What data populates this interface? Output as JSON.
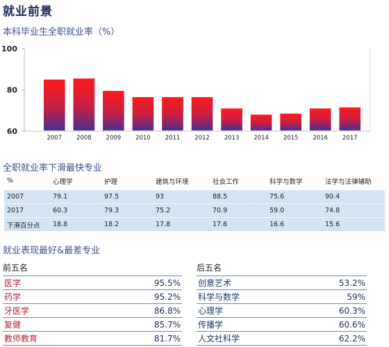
{
  "page_title": "就业前景",
  "chart_data": {
    "type": "bar",
    "title": "本科毕业生全职就业率（%）",
    "categories": [
      "2007",
      "2008",
      "2009",
      "2010",
      "2011",
      "2012",
      "2013",
      "2014",
      "2015",
      "2016",
      "2017"
    ],
    "values": [
      85,
      85.5,
      79.5,
      76.5,
      76.5,
      76.5,
      71,
      68,
      68.5,
      71,
      71.5
    ],
    "yticks": [
      60,
      80,
      100
    ],
    "ylim": [
      60,
      100
    ],
    "colors": {
      "top": "#ff1a1a",
      "bottom": "#4a2f8f",
      "frame": "#ccc"
    }
  },
  "drop_table": {
    "title": "全职就业率下滑最快专业",
    "header": [
      "%",
      "心理学",
      "护理",
      "建筑与环境",
      "社会工作",
      "科学与数学",
      "法学与法律辅助"
    ],
    "rows": [
      [
        "2007",
        "79.1",
        "97.5",
        "93",
        "88.5",
        "75.6",
        "90.4"
      ],
      [
        "2017",
        "60.3",
        "79.3",
        "75.2",
        "70.9",
        "59.0",
        "74.8"
      ],
      [
        "下滑百分点",
        "18.8",
        "18.2",
        "17.8",
        "17.6",
        "16.6",
        "15.6"
      ]
    ]
  },
  "ranking": {
    "title": "就业表现最好&最差专业",
    "best_label": "前五名",
    "worst_label": "后五名",
    "best": [
      {
        "name": "医学",
        "pct": "95.5%"
      },
      {
        "name": "药学",
        "pct": "95.2%"
      },
      {
        "name": "牙医学",
        "pct": "86.8%"
      },
      {
        "name": "复健",
        "pct": "85.7%"
      },
      {
        "name": "教师教育",
        "pct": "81.7%"
      }
    ],
    "worst": [
      {
        "name": "创意艺术",
        "pct": "53.2%"
      },
      {
        "name": "科学与数学",
        "pct": "59%"
      },
      {
        "name": "心理学",
        "pct": "60.3%"
      },
      {
        "name": "传播学",
        "pct": "60.6%"
      },
      {
        "name": "人文社科学",
        "pct": "62.2%"
      }
    ]
  }
}
